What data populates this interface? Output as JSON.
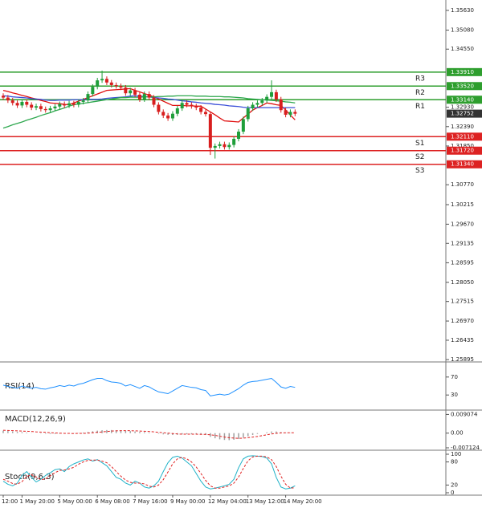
{
  "chart_data": [
    {
      "type": "candlestick",
      "categories": [
        "12:00",
        null,
        null,
        null,
        "1 May 20:00",
        null,
        null,
        null,
        null,
        null,
        null,
        null,
        "5 May 00:00",
        null,
        null,
        null,
        null,
        null,
        null,
        null,
        "6 May 08:00",
        null,
        null,
        null,
        null,
        null,
        null,
        null,
        "7 May 16:00",
        null,
        null,
        null,
        null,
        null,
        null,
        null,
        "9 May 00:00",
        null,
        null,
        null,
        null,
        null,
        null,
        null,
        "12 May 04:00",
        null,
        null,
        null,
        null,
        null,
        null,
        null,
        "13 May 12:00",
        null,
        null,
        null,
        null,
        null,
        null,
        null,
        "14 May 20:00",
        null,
        null
      ],
      "open": [
        1.3325,
        1.332,
        1.3312,
        1.3305,
        1.3298,
        1.3308,
        1.33,
        1.3292,
        1.3296,
        1.3288,
        1.3285,
        1.329,
        1.3295,
        1.3302,
        1.3298,
        1.3304,
        1.33,
        1.3308,
        1.3312,
        1.333,
        1.335,
        1.3368,
        1.3372,
        1.3362,
        1.3355,
        1.3352,
        1.3348,
        1.3332,
        1.334,
        1.3328,
        1.3315,
        1.333,
        1.332,
        1.33,
        1.328,
        1.327,
        1.3262,
        1.3275,
        1.329,
        1.3305,
        1.33,
        1.3296,
        1.3292,
        1.328,
        1.3274,
        1.318,
        1.3185,
        1.319,
        1.3182,
        1.3188,
        1.3205,
        1.3225,
        1.326,
        1.329,
        1.33,
        1.3305,
        1.3312,
        1.3322,
        1.3335,
        1.3315,
        1.3285,
        1.3272,
        1.328
      ],
      "high": [
        1.3332,
        1.3327,
        1.3319,
        1.3312,
        1.3315,
        1.3315,
        1.3307,
        1.3303,
        1.3303,
        1.3295,
        1.3297,
        1.3302,
        1.3309,
        1.3309,
        1.3311,
        1.3311,
        1.3315,
        1.3319,
        1.3337,
        1.3357,
        1.3375,
        1.3395,
        1.3379,
        1.3369,
        1.3362,
        1.3359,
        1.3355,
        1.3347,
        1.3347,
        1.3335,
        1.3337,
        1.3337,
        1.3327,
        1.3307,
        1.3287,
        1.3277,
        1.3282,
        1.3297,
        1.3312,
        1.3312,
        1.3307,
        1.3303,
        1.3299,
        1.3287,
        1.3281,
        1.3192,
        1.3197,
        1.3197,
        1.3195,
        1.3212,
        1.3232,
        1.3267,
        1.3297,
        1.3307,
        1.3312,
        1.3319,
        1.3329,
        1.3368,
        1.3342,
        1.3322,
        1.3292,
        1.3287,
        1.3287
      ],
      "low": [
        1.3313,
        1.3305,
        1.3298,
        1.3291,
        1.3291,
        1.3293,
        1.3285,
        1.3285,
        1.3281,
        1.3278,
        1.3278,
        1.3283,
        1.3288,
        1.3291,
        1.3291,
        1.3293,
        1.3293,
        1.3301,
        1.3305,
        1.3323,
        1.3343,
        1.3361,
        1.3355,
        1.3348,
        1.3345,
        1.3341,
        1.3325,
        1.3325,
        1.3321,
        1.3308,
        1.3308,
        1.3313,
        1.3293,
        1.3273,
        1.3263,
        1.3255,
        1.3255,
        1.3268,
        1.3283,
        1.3293,
        1.3289,
        1.3285,
        1.3273,
        1.3267,
        1.316,
        1.315,
        1.3178,
        1.3175,
        1.3175,
        1.3181,
        1.3198,
        1.3218,
        1.3253,
        1.3283,
        1.3293,
        1.3298,
        1.3305,
        1.3315,
        1.3308,
        1.3278,
        1.3265,
        1.3265,
        1.3268
      ],
      "close": [
        1.332,
        1.3312,
        1.3305,
        1.3298,
        1.3308,
        1.33,
        1.3292,
        1.3296,
        1.3288,
        1.3285,
        1.329,
        1.3295,
        1.3302,
        1.3298,
        1.3304,
        1.33,
        1.3308,
        1.3312,
        1.333,
        1.335,
        1.3368,
        1.3372,
        1.3362,
        1.3355,
        1.3352,
        1.3348,
        1.3332,
        1.334,
        1.3328,
        1.3315,
        1.333,
        1.332,
        1.33,
        1.328,
        1.327,
        1.3262,
        1.3275,
        1.329,
        1.3305,
        1.33,
        1.3296,
        1.3292,
        1.328,
        1.3274,
        1.318,
        1.3185,
        1.319,
        1.3182,
        1.3188,
        1.3205,
        1.3225,
        1.326,
        1.329,
        1.33,
        1.3305,
        1.3312,
        1.3322,
        1.3335,
        1.3315,
        1.3285,
        1.3272,
        1.328,
        1.3275
      ],
      "up_color": "#1f9e3a",
      "down_color": "#d81e1e",
      "series": [
        {
          "color": "#e01010",
          "values": [
            1.334,
            1.3337,
            1.3333,
            1.333,
            1.3326,
            1.3323,
            1.3319,
            1.3316,
            1.3312,
            1.3309,
            1.3305,
            1.3304,
            1.3303,
            1.3301,
            1.33,
            1.3305,
            1.331,
            1.3315,
            1.332,
            1.3325,
            1.333,
            1.3335,
            1.334,
            1.3341,
            1.3342,
            1.3343,
            1.3344,
            1.3345,
            1.334,
            1.3336,
            1.3331,
            1.3327,
            1.3322,
            1.3316,
            1.331,
            1.3304,
            1.3298,
            1.3298,
            1.3298,
            1.3297,
            1.3297,
            1.3296,
            1.3296,
            1.3288,
            1.328,
            1.3272,
            1.3263,
            1.3255,
            1.3254,
            1.3253,
            1.3252,
            1.3263,
            1.3274,
            1.3285,
            1.3292,
            1.3298,
            1.3305,
            1.3303,
            1.33,
            1.3298,
            1.3285,
            1.3271,
            1.3258
          ]
        },
        {
          "color": "#3b4fd8",
          "values": [
            1.3325,
            1.3324,
            1.3322,
            1.3321,
            1.332,
            1.3319,
            1.3317,
            1.3316,
            1.3315,
            1.3313,
            1.3312,
            1.3312,
            1.3313,
            1.3313,
            1.3313,
            1.3314,
            1.3314,
            1.3314,
            1.3315,
            1.3315,
            1.3315,
            1.3316,
            1.3318,
            1.3319,
            1.332,
            1.3321,
            1.3322,
            1.3324,
            1.3325,
            1.3324,
            1.3323,
            1.3322,
            1.332,
            1.3319,
            1.3318,
            1.3316,
            1.3315,
            1.3313,
            1.3311,
            1.331,
            1.3308,
            1.3307,
            1.3305,
            1.3304,
            1.3303,
            1.3301,
            1.33,
            1.3299,
            1.3297,
            1.3296,
            1.3295,
            1.3293,
            1.3292,
            1.3292,
            1.3292,
            1.3292,
            1.3292,
            1.3292,
            1.3292,
            1.3292,
            1.3292,
            1.3292,
            1.3292
          ]
        },
        {
          "color": "#2fa84f",
          "values": [
            1.3235,
            1.3239,
            1.3244,
            1.3248,
            1.3252,
            1.3257,
            1.3261,
            1.3265,
            1.327,
            1.3274,
            1.3278,
            1.3283,
            1.3287,
            1.3291,
            1.3296,
            1.33,
            1.3302,
            1.3304,
            1.3306,
            1.3308,
            1.331,
            1.3312,
            1.3314,
            1.3316,
            1.3318,
            1.332,
            1.332,
            1.3321,
            1.3321,
            1.3321,
            1.3322,
            1.3322,
            1.3322,
            1.3323,
            1.3323,
            1.3324,
            1.3324,
            1.3325,
            1.3325,
            1.3325,
            1.3325,
            1.3324,
            1.3324,
            1.3324,
            1.3323,
            1.3323,
            1.3323,
            1.3322,
            1.3322,
            1.3321,
            1.332,
            1.3319,
            1.3317,
            1.3316,
            1.3315,
            1.3314,
            1.3313,
            1.3312,
            1.3311,
            1.331,
            1.3308,
            1.3307,
            1.3305
          ]
        }
      ],
      "levels": [
        {
          "name": "R3",
          "value": 1.3391,
          "label": "1.33910",
          "color": "#2e9e2e"
        },
        {
          "name": "R2",
          "value": 1.3352,
          "label": "1.33520",
          "color": "#2e9e2e"
        },
        {
          "name": "R1",
          "value": 1.3314,
          "label": "1.33140",
          "color": "#2e9e2e"
        },
        {
          "name": "S1",
          "value": 1.3211,
          "label": "1.32110",
          "color": "#dd2222"
        },
        {
          "name": "S2",
          "value": 1.3172,
          "label": "1.31720",
          "color": "#dd2222"
        },
        {
          "name": "S3",
          "value": 1.3134,
          "label": "1.31340",
          "color": "#dd2222"
        }
      ],
      "current_price": {
        "value": 1.32752,
        "label": "1.32752",
        "color": "#333333"
      },
      "ylim": [
        1.2583,
        1.3592
      ],
      "yticks": [
        {
          "value": 1.3563,
          "label": "1.35630"
        },
        {
          "value": 1.3508,
          "label": "1.35080"
        },
        {
          "value": 1.3455,
          "label": "1.34550"
        },
        {
          "value": 1.3293,
          "label": "1.32930"
        },
        {
          "value": 1.3239,
          "label": "1.32390"
        },
        {
          "value": 1.3185,
          "label": "1.31850"
        },
        {
          "value": 1.3077,
          "label": "1.30770"
        },
        {
          "value": 1.30215,
          "label": "1.30215"
        },
        {
          "value": 1.2967,
          "label": "1.29670"
        },
        {
          "value": 1.29135,
          "label": "1.29135"
        },
        {
          "value": 1.28595,
          "label": "1.28595"
        },
        {
          "value": 1.2805,
          "label": "1.28050"
        },
        {
          "value": 1.27515,
          "label": "1.27515"
        },
        {
          "value": 1.2697,
          "label": "1.26970"
        },
        {
          "value": 1.26435,
          "label": "1.26435"
        },
        {
          "value": 1.25895,
          "label": "1.25895"
        }
      ]
    },
    {
      "type": "line",
      "title": "RSI(14)",
      "series": [
        {
          "color": "#1e90ff",
          "values": [
            52,
            49,
            47,
            45,
            50,
            47,
            45,
            47,
            44,
            43,
            46,
            48,
            51,
            49,
            52,
            50,
            54,
            56,
            60,
            64,
            67,
            67,
            62,
            59,
            58,
            56,
            50,
            53,
            49,
            45,
            51,
            48,
            42,
            37,
            35,
            33,
            39,
            45,
            51,
            49,
            47,
            46,
            42,
            40,
            28,
            30,
            32,
            30,
            32,
            38,
            44,
            52,
            58,
            60,
            61,
            63,
            65,
            67,
            58,
            48,
            45,
            49,
            47
          ]
        }
      ],
      "ylim": [
        0,
        100
      ],
      "yticks": [
        70,
        30
      ]
    },
    {
      "type": "macd",
      "title": "MACD(12,26,9)",
      "histogram": {
        "color": "#a0a0a0",
        "values": [
          0.0012,
          0.001,
          0.0008,
          0.0006,
          0.0005,
          0.0003,
          0.0001,
          0.0,
          -0.0002,
          -0.0003,
          -0.0004,
          -0.0004,
          -0.0003,
          -0.0003,
          -0.0002,
          -0.0001,
          0.0001,
          0.0003,
          0.0006,
          0.0009,
          0.0012,
          0.0014,
          0.0015,
          0.0015,
          0.0014,
          0.0013,
          0.0011,
          0.001,
          0.0008,
          0.0006,
          0.0005,
          0.0003,
          0.0,
          -0.0003,
          -0.0006,
          -0.0008,
          -0.0009,
          -0.0008,
          -0.0006,
          -0.0005,
          -0.0005,
          -0.0005,
          -0.0007,
          -0.0009,
          -0.0018,
          -0.0025,
          -0.003,
          -0.0033,
          -0.0034,
          -0.0032,
          -0.0028,
          -0.0022,
          -0.0015,
          -0.0009,
          -0.0004,
          0.0,
          0.0004,
          0.0008,
          0.0008,
          0.0005,
          0.0002,
          0.0001,
          0.0
        ]
      },
      "signal": {
        "color": "#e02020",
        "values": [
          0.0014,
          0.0013,
          0.0012,
          0.0011,
          0.001,
          0.0009,
          0.0008,
          0.0006,
          0.0005,
          0.0004,
          0.0002,
          0.0001,
          0.0,
          -0.0001,
          -0.0001,
          -0.0002,
          -0.0001,
          -0.0001,
          0.0,
          0.0002,
          0.0004,
          0.0006,
          0.0008,
          0.001,
          0.0011,
          0.0012,
          0.0012,
          0.0012,
          0.0011,
          0.001,
          0.0009,
          0.0008,
          0.0006,
          0.0004,
          0.0002,
          0.0,
          -0.0002,
          -0.0004,
          -0.0005,
          -0.0005,
          -0.0005,
          -0.0005,
          -0.0006,
          -0.0006,
          -0.0008,
          -0.0011,
          -0.0015,
          -0.0019,
          -0.0022,
          -0.0024,
          -0.0025,
          -0.0024,
          -0.0022,
          -0.0019,
          -0.0016,
          -0.0012,
          -0.0008,
          -0.0004,
          -0.0001,
          0.0001,
          0.0002,
          0.0002,
          0.0002
        ]
      },
      "ylim": [
        -0.0079,
        0.0104
      ],
      "yticks": [
        {
          "value": 0.009074,
          "label": "0.009074"
        },
        {
          "value": 0,
          "label": "0.00"
        },
        {
          "value": -0.007124,
          "label": "-0.007124"
        }
      ]
    },
    {
      "type": "line",
      "title": "Stoch(9,6,3)",
      "series": [
        {
          "color": "#20b2c8",
          "values": [
            30,
            22,
            18,
            25,
            45,
            55,
            40,
            28,
            35,
            45,
            52,
            60,
            62,
            55,
            68,
            75,
            80,
            85,
            88,
            82,
            86,
            78,
            70,
            55,
            40,
            35,
            25,
            20,
            30,
            25,
            15,
            12,
            18,
            30,
            55,
            78,
            92,
            95,
            90,
            80,
            70,
            50,
            30,
            15,
            10,
            12,
            15,
            18,
            22,
            35,
            65,
            88,
            95,
            96,
            95,
            94,
            90,
            75,
            40,
            15,
            10,
            12,
            18
          ]
        },
        {
          "color": "#e02020",
          "dashed": true,
          "values": [
            35,
            30,
            24,
            22,
            29,
            42,
            47,
            41,
            34,
            36,
            44,
            52,
            58,
            59,
            62,
            66,
            74,
            80,
            84,
            85,
            85,
            82,
            78,
            68,
            55,
            43,
            33,
            27,
            25,
            25,
            23,
            17,
            15,
            20,
            34,
            54,
            75,
            88,
            92,
            88,
            80,
            67,
            50,
            32,
            18,
            12,
            12,
            15,
            18,
            25,
            41,
            63,
            83,
            93,
            95,
            95,
            93,
            86,
            68,
            43,
            22,
            12,
            13
          ]
        }
      ],
      "ylim": [
        0,
        100
      ],
      "yticks": [
        100,
        80,
        20,
        0
      ]
    }
  ]
}
